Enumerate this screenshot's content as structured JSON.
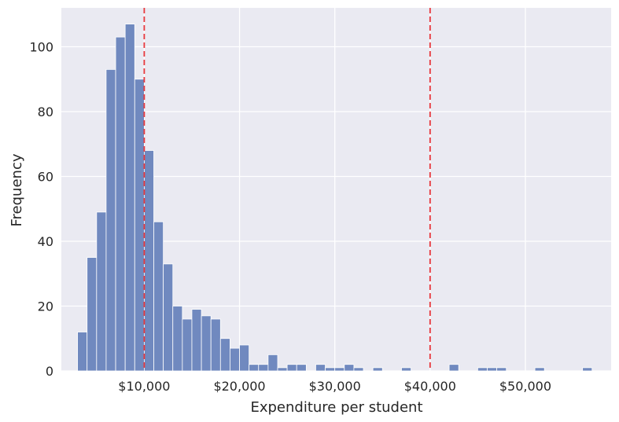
{
  "chart_data": {
    "type": "bar",
    "title": "",
    "xlabel": "Expenditure per student",
    "ylabel": "Frequency",
    "xlim": [
      1300,
      59000
    ],
    "ylim": [
      0,
      112
    ],
    "grid": true,
    "bin_start": 3000,
    "bin_width": 1000,
    "values": [
      12,
      35,
      49,
      93,
      103,
      107,
      90,
      68,
      46,
      33,
      20,
      16,
      19,
      17,
      16,
      10,
      7,
      8,
      2,
      2,
      5,
      1,
      2,
      2,
      0,
      2,
      1,
      1,
      2,
      1,
      0,
      1,
      0,
      0,
      1,
      0,
      0,
      0,
      0,
      2,
      0,
      0,
      1,
      1,
      1,
      0,
      0,
      0,
      1,
      0,
      0,
      0,
      0,
      1
    ],
    "x_ticks": [
      {
        "value": 10000,
        "label": "$10,000"
      },
      {
        "value": 20000,
        "label": "$20,000"
      },
      {
        "value": 30000,
        "label": "$30,000"
      },
      {
        "value": 40000,
        "label": "$40,000"
      },
      {
        "value": 50000,
        "label": "$50,000"
      }
    ],
    "y_ticks": [
      {
        "value": 0,
        "label": "0"
      },
      {
        "value": 20,
        "label": "20"
      },
      {
        "value": 40,
        "label": "40"
      },
      {
        "value": 60,
        "label": "60"
      },
      {
        "value": 80,
        "label": "80"
      },
      {
        "value": 100,
        "label": "100"
      }
    ],
    "reference_lines": [
      10000,
      40000
    ],
    "colors": {
      "bar": "#7089bf",
      "bar_edge": "#ffffff",
      "background": "#eaeaf2",
      "grid": "#ffffff",
      "reference_line": "#e8383d"
    }
  }
}
